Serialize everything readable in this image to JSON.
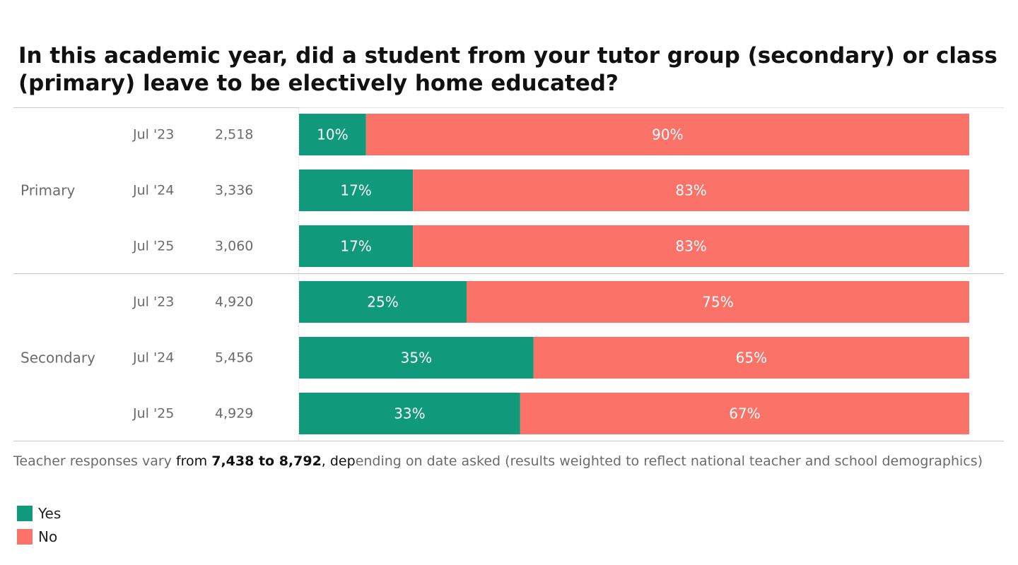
{
  "title": "In this academic year, did a student from your tutor group (secondary) or class (primary) leave to be electively home educated?",
  "footnote": {
    "pre": "Teacher responses vary ",
    "mid1": "from ",
    "bold": "7,438 to 8,792",
    "mid2": ", dep",
    "post": "ending on date asked (results weighted to reflect national teacher and school demographics)"
  },
  "colors": {
    "yes": "#10997a",
    "no": "#fa7268"
  },
  "chart_data": {
    "type": "bar",
    "orientation": "horizontal",
    "stacked": "percent",
    "groups": [
      {
        "name": "Primary",
        "rows": [
          {
            "date": "Jul '23",
            "n": "2,518",
            "yes": 10,
            "no": 90
          },
          {
            "date": "Jul '24",
            "n": "3,336",
            "yes": 17,
            "no": 83
          },
          {
            "date": "Jul '25",
            "n": "3,060",
            "yes": 17,
            "no": 83
          }
        ]
      },
      {
        "name": "Secondary",
        "rows": [
          {
            "date": "Jul '23",
            "n": "4,920",
            "yes": 25,
            "no": 75
          },
          {
            "date": "Jul '24",
            "n": "5,456",
            "yes": 35,
            "no": 65
          },
          {
            "date": "Jul '25",
            "n": "4,929",
            "yes": 33,
            "no": 67
          }
        ]
      }
    ],
    "series": [
      {
        "name": "Yes",
        "key": "yes"
      },
      {
        "name": "No",
        "key": "no"
      }
    ],
    "value_suffix": "%",
    "legend_position": "bottom-left"
  }
}
